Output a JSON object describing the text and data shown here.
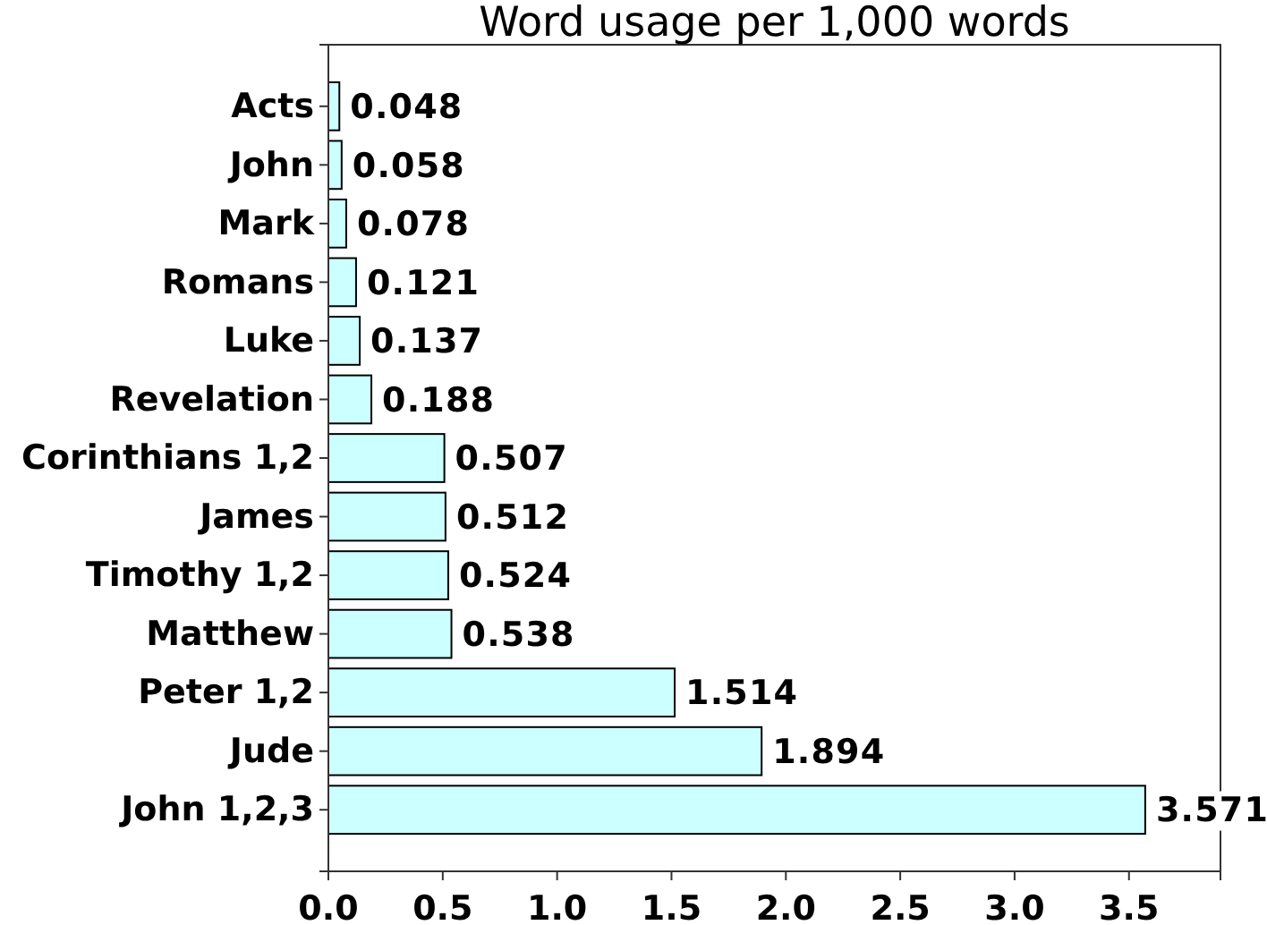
{
  "chart_data": {
    "type": "bar",
    "orientation": "horizontal",
    "title": "Word usage per 1,000 words",
    "categories": [
      "Acts",
      "John",
      "Mark",
      "Romans",
      "Luke",
      "Revelation",
      "Corinthians 1,2",
      "James",
      "Timothy 1,2",
      "Matthew",
      "Peter 1,2",
      "Jude",
      "John 1,2,3"
    ],
    "values": [
      0.048,
      0.058,
      0.078,
      0.121,
      0.137,
      0.188,
      0.507,
      0.512,
      0.524,
      0.538,
      1.514,
      1.894,
      3.571
    ],
    "color": "#ccffff",
    "xlim": [
      0,
      3.9
    ],
    "xticks": [
      {
        "value": 0,
        "label": "0.0"
      },
      {
        "value": 0.5,
        "label": "0.5"
      },
      {
        "value": 1,
        "label": "1.0"
      },
      {
        "value": 1.5,
        "label": "1.5"
      },
      {
        "value": 2,
        "label": "2.0"
      },
      {
        "value": 2.5,
        "label": "2.5"
      },
      {
        "value": 3,
        "label": "3.0"
      },
      {
        "value": 3.5,
        "label": "3.5"
      }
    ],
    "data_labels": true
  }
}
